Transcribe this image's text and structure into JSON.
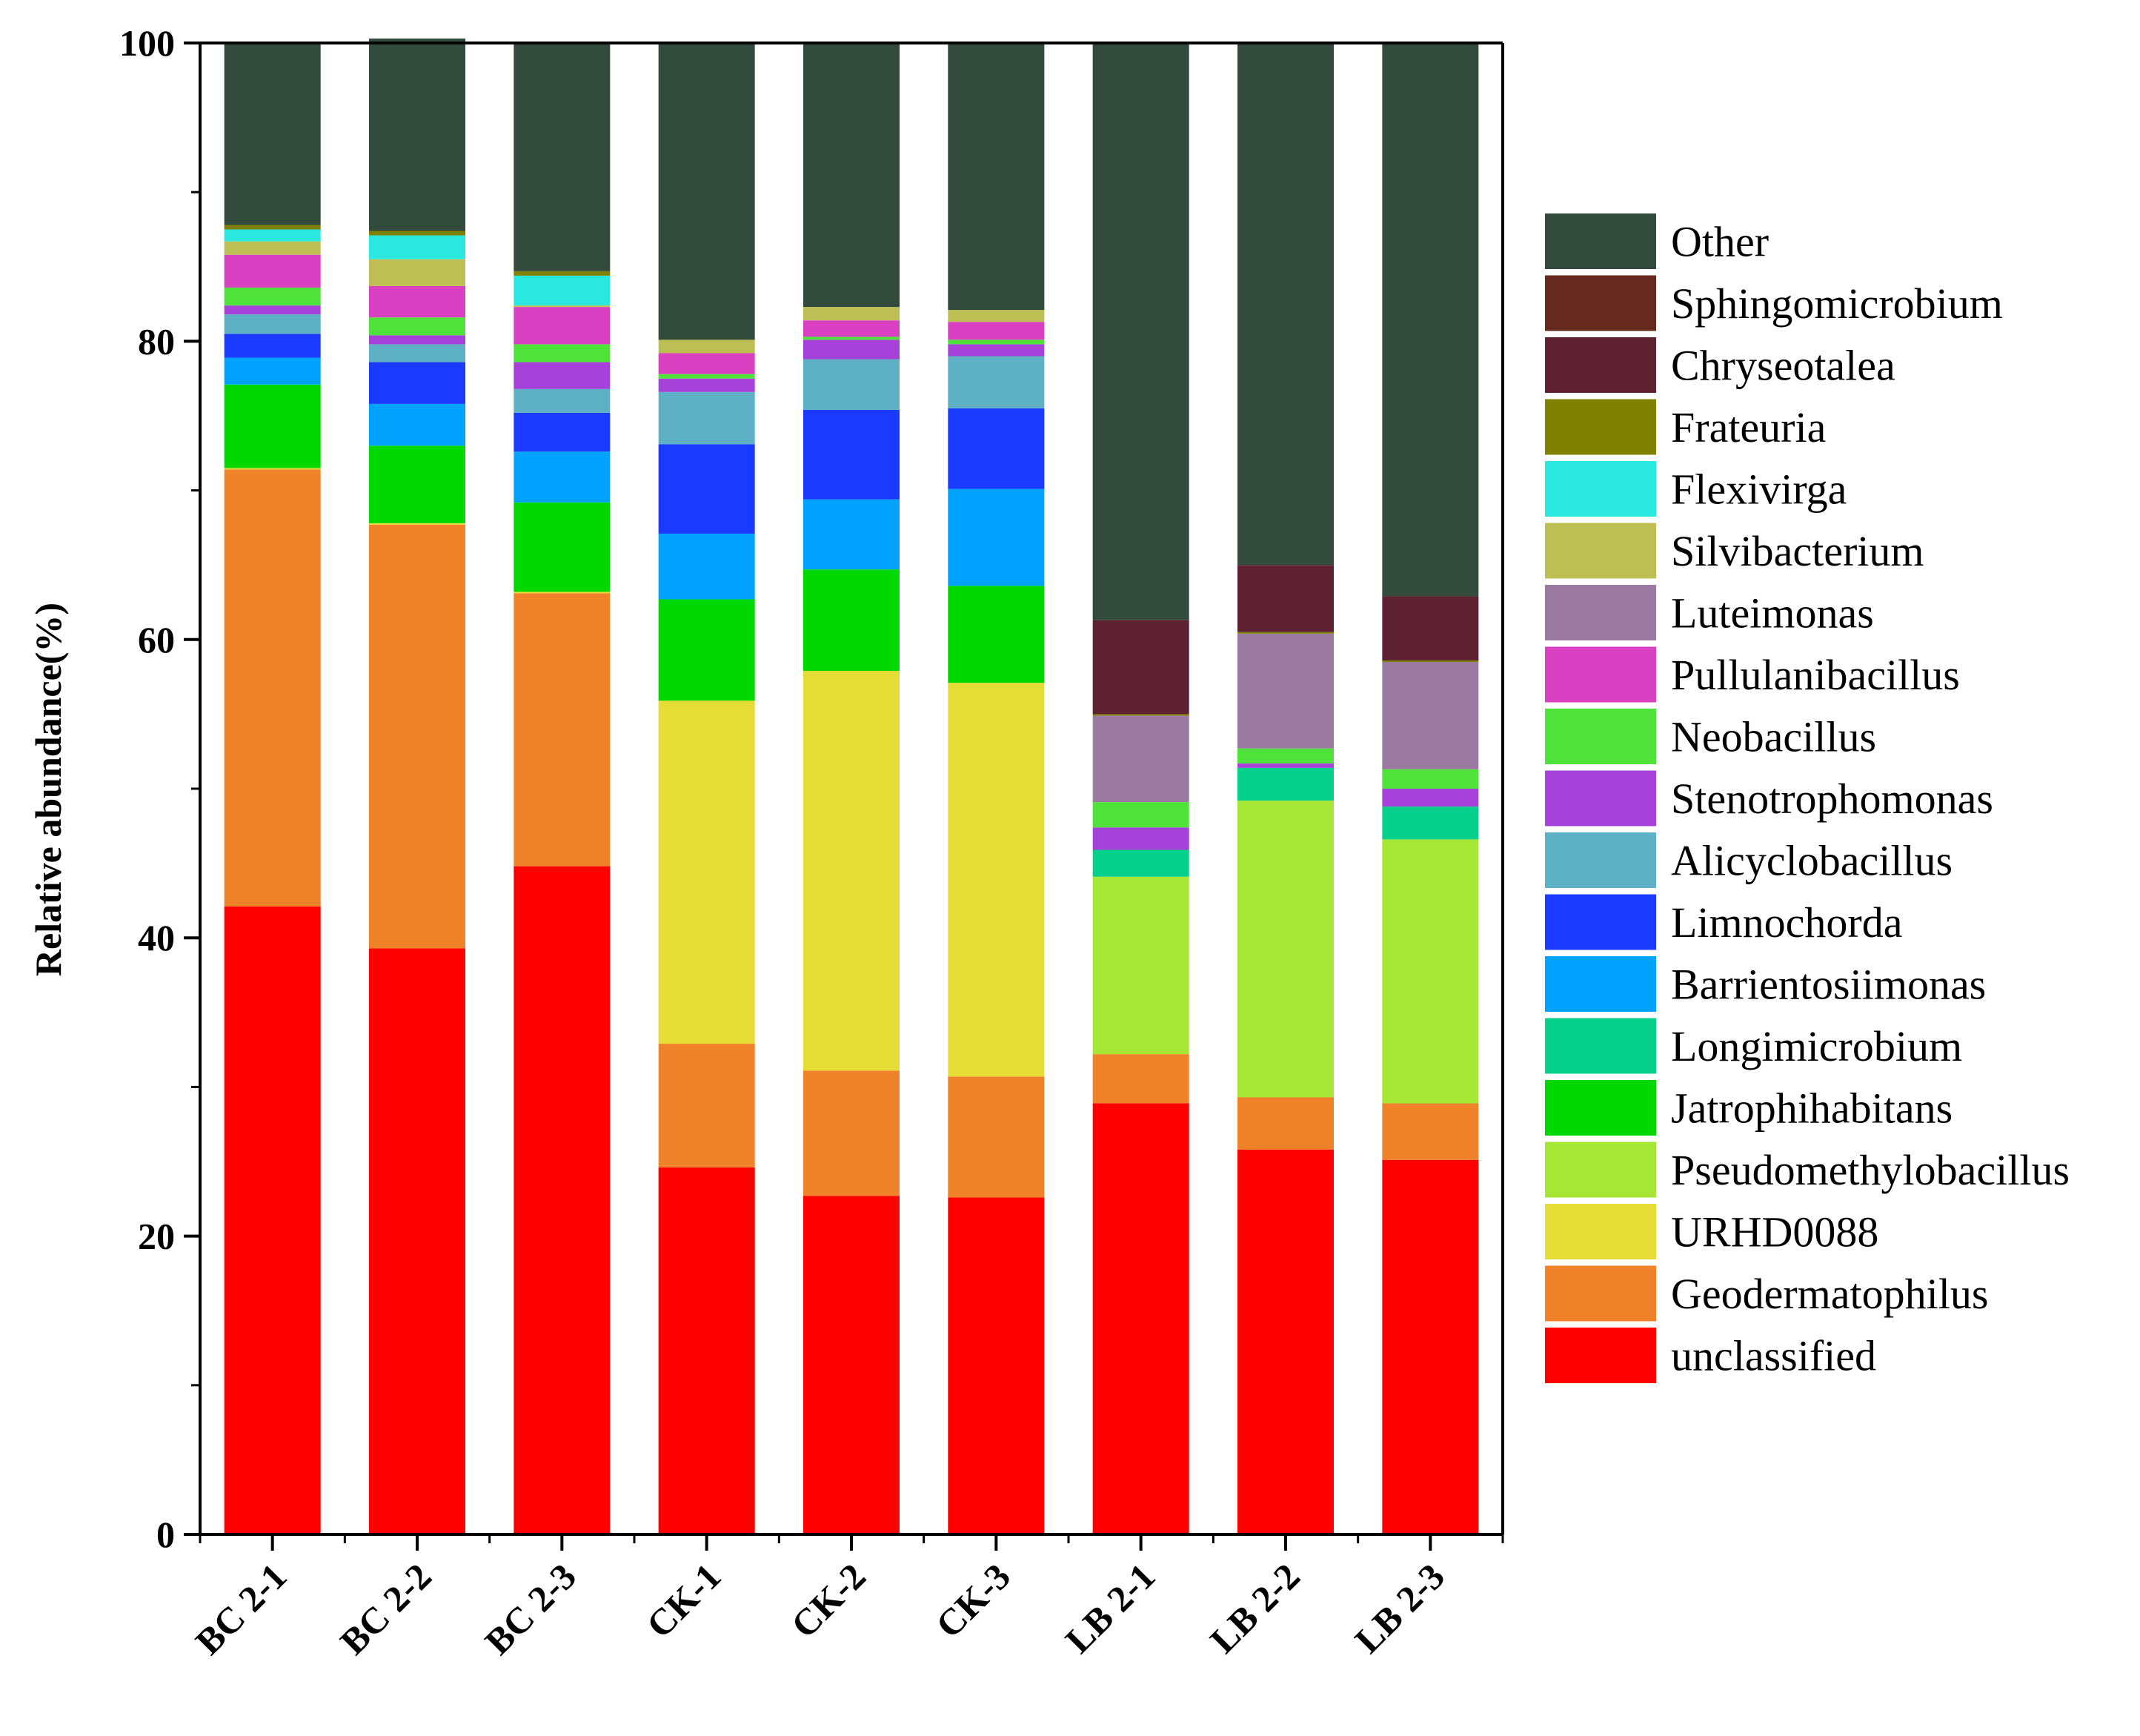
{
  "chart_data": {
    "type": "bar",
    "stacked": true,
    "title": "",
    "xlabel": "",
    "ylabel": "Relative abundance(%)",
    "ylim": [
      0,
      100
    ],
    "yticks": [
      "0",
      "20",
      "40",
      "60",
      "80",
      "100"
    ],
    "legend_position": "right",
    "categories": [
      "BC 2-1",
      "BC 2-2",
      "BC 2-3",
      "CK-1",
      "CK-2",
      "CK-3",
      "LB 2-1",
      "LB 2-2",
      "LB 2-3"
    ],
    "series": [
      {
        "name": "unclassified",
        "color": "#ff0000",
        "values": [
          42.1,
          39.3,
          44.8,
          24.6,
          22.7,
          22.6,
          28.9,
          25.8,
          25.1
        ]
      },
      {
        "name": "Geodermatophilus",
        "color": "#f0822a",
        "values": [
          29.3,
          28.4,
          18.3,
          8.3,
          8.4,
          8.1,
          3.3,
          3.5,
          3.8
        ]
      },
      {
        "name": "URHD0088",
        "color": "#e5dc36",
        "values": [
          0.1,
          0.1,
          0.1,
          23.0,
          26.8,
          26.4,
          0.0,
          0.0,
          0.0
        ]
      },
      {
        "name": "Pseudomethylobacillus",
        "color": "#a6e634",
        "values": [
          0.0,
          0.0,
          0.0,
          0.0,
          0.0,
          0.0,
          11.9,
          19.9,
          17.7
        ]
      },
      {
        "name": "Jatrophihabitans",
        "color": "#00d800",
        "values": [
          5.6,
          5.2,
          6.0,
          6.8,
          6.8,
          6.5,
          0.0,
          0.0,
          0.0
        ]
      },
      {
        "name": "Longimicrobium",
        "color": "#05d18d",
        "values": [
          0.0,
          0.0,
          0.0,
          0.0,
          0.0,
          0.0,
          1.8,
          2.2,
          2.2
        ]
      },
      {
        "name": "Barrientosiimonas",
        "color": "#02a3ff",
        "values": [
          1.8,
          2.8,
          3.4,
          4.4,
          4.7,
          6.5,
          0.0,
          0.0,
          0.0
        ]
      },
      {
        "name": "Limnochorda",
        "color": "#1b3aff",
        "values": [
          1.6,
          2.8,
          2.6,
          6.0,
          6.0,
          5.4,
          0.0,
          0.0,
          0.0
        ]
      },
      {
        "name": "Alicyclobacillus",
        "color": "#5eb1c5",
        "values": [
          1.3,
          1.2,
          1.6,
          3.5,
          3.4,
          3.5,
          0.0,
          0.0,
          0.0
        ]
      },
      {
        "name": "Stenotrophomonas",
        "color": "#a641d9",
        "values": [
          0.6,
          0.6,
          1.8,
          0.9,
          1.3,
          0.8,
          1.5,
          0.3,
          1.2
        ]
      },
      {
        "name": "Neobacillus",
        "color": "#4fe23a",
        "values": [
          1.2,
          1.2,
          1.2,
          0.3,
          0.2,
          0.3,
          1.7,
          1.0,
          1.3
        ]
      },
      {
        "name": "Pullulanibacillus",
        "color": "#da41c2",
        "values": [
          2.2,
          2.1,
          2.5,
          1.4,
          1.1,
          1.2,
          0.0,
          0.0,
          0.0
        ]
      },
      {
        "name": "Luteimonas",
        "color": "#9b7aa2",
        "values": [
          0.0,
          0.0,
          0.0,
          0.0,
          0.0,
          0.0,
          5.8,
          7.7,
          7.2
        ]
      },
      {
        "name": "Silvibacterium",
        "color": "#bdbf55",
        "values": [
          0.9,
          1.8,
          0.1,
          0.9,
          0.9,
          0.8,
          0.0,
          0.0,
          0.0
        ]
      },
      {
        "name": "Flexivirga",
        "color": "#2ae8e0",
        "values": [
          0.8,
          1.6,
          2.0,
          0.0,
          0.0,
          0.0,
          0.0,
          0.0,
          0.0
        ]
      },
      {
        "name": "Frateuria",
        "color": "#7f7f00",
        "values": [
          0.3,
          0.3,
          0.3,
          0.0,
          0.0,
          0.0,
          0.1,
          0.1,
          0.1
        ]
      },
      {
        "name": "Chryseotalea",
        "color": "#5d2132",
        "values": [
          0.0,
          0.0,
          0.0,
          0.0,
          0.0,
          0.0,
          6.3,
          4.5,
          4.3
        ]
      },
      {
        "name": "Sphingomicrobium",
        "color": "#66291d",
        "values": [
          0.0,
          0.0,
          0.0,
          0.0,
          0.0,
          0.0,
          0.0,
          0.0,
          0.0
        ]
      },
      {
        "name": "Other",
        "color": "#324b3c",
        "values": [
          12.2,
          12.9,
          15.3,
          19.9,
          17.7,
          17.9,
          38.7,
          35.0,
          37.1
        ]
      }
    ]
  }
}
